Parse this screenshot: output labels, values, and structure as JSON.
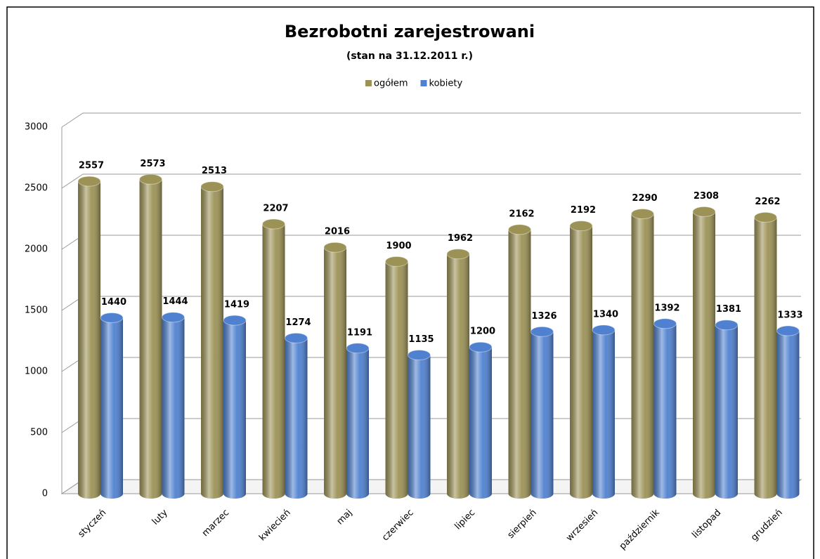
{
  "chart_data": {
    "type": "bar",
    "title": "Bezrobotni zarejestrowani",
    "subtitle": "(stan na 31.12.2011 r.)",
    "categories": [
      "styczeń",
      "luty",
      "marzec",
      "kwiecień",
      "maj",
      "czerwiec",
      "lipiec",
      "sierpień",
      "wrzesień",
      "październik",
      "listopad",
      "grudzień"
    ],
    "series": [
      {
        "name": "ogółem",
        "color": "#9c9256",
        "values": [
          2557,
          2573,
          2513,
          2207,
          2016,
          1900,
          1962,
          2162,
          2192,
          2290,
          2308,
          2262
        ]
      },
      {
        "name": "kobiety",
        "color": "#4f81d0",
        "values": [
          1440,
          1444,
          1419,
          1274,
          1191,
          1135,
          1200,
          1326,
          1340,
          1392,
          1381,
          1333
        ]
      }
    ],
    "ylim": [
      0,
      3000
    ],
    "yticks": [
      0,
      500,
      1000,
      1500,
      2000,
      2500,
      3000
    ],
    "grid": true,
    "legend": "top"
  }
}
